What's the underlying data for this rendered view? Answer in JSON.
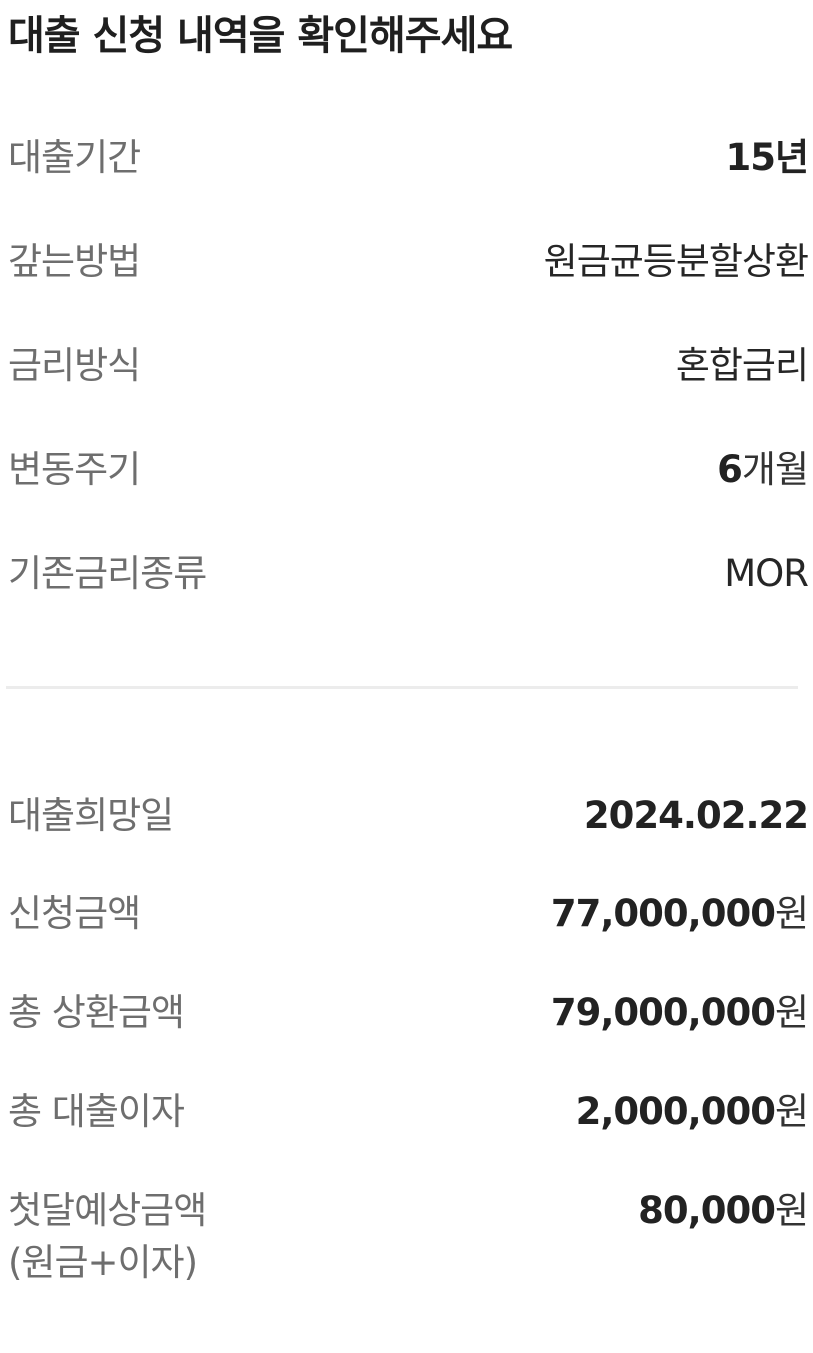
{
  "header": {
    "title": "대출 신청 내역을 확인해주세요"
  },
  "loan_terms": [
    {
      "label": "대출기간",
      "value_number": "15",
      "value_unit": "년"
    },
    {
      "label": "갚는방법",
      "value_text": "원금균등분할상환"
    },
    {
      "label": "금리방식",
      "value_text": "혼합금리"
    },
    {
      "label": "변동주기",
      "value_number": "6",
      "value_unit": "개월"
    },
    {
      "label": "기존금리종류",
      "value_text": "MOR"
    }
  ],
  "amounts": [
    {
      "label": "대출희망일",
      "value_number": "2024.02.22",
      "value_unit": ""
    },
    {
      "label": "신청금액",
      "value_number": "77,000,000",
      "value_unit": "원"
    },
    {
      "label": "총 상환금액",
      "value_number": "79,000,000",
      "value_unit": "원"
    },
    {
      "label": "총 대출이자",
      "value_number": "2,000,000",
      "value_unit": "원"
    },
    {
      "label": "첫달예상금액",
      "label_sub": "(원금+이자)",
      "value_number": "80,000",
      "value_unit": "원"
    }
  ]
}
